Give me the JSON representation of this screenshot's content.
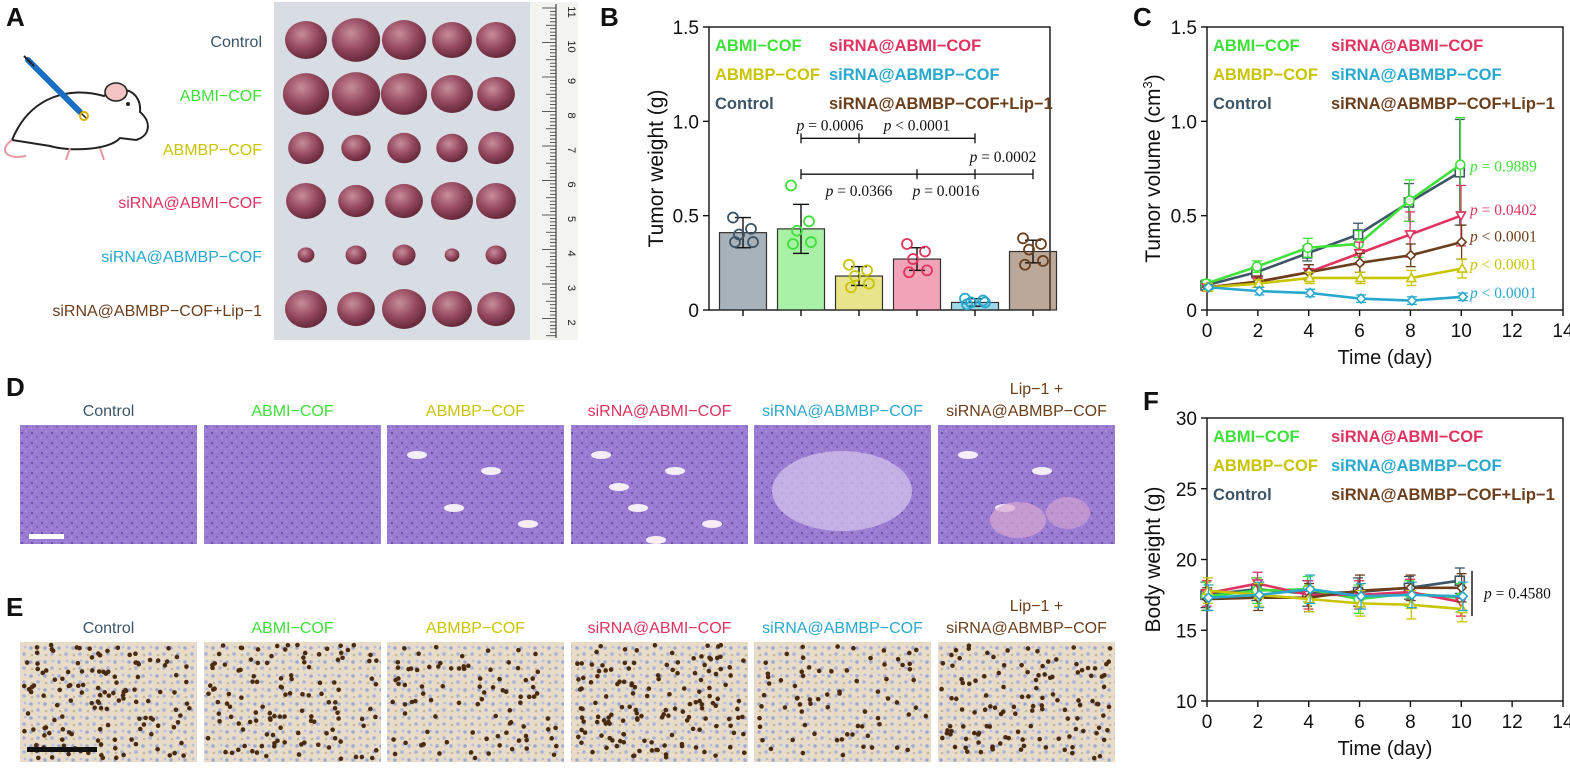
{
  "colors": {
    "Control": "#3d5566",
    "ABMI-COF": "#3fe03a",
    "ABMBP-COF": "#c9c400",
    "siRNA@ABMI-COF": "#e0335f",
    "siRNA@ABMBP-COF": "#28a8cc",
    "siRNA@ABMBP-COF+Lip-1": "#6b3e1c"
  },
  "panels": {
    "A": {
      "label": "A",
      "rows": [
        "Control",
        "ABMI−COF",
        "ABMBP−COF",
        "siRNA@ABMI−COF",
        "siRNA@ABMBP−COF",
        "siRNA@ABMBP−COF+Lip−1"
      ],
      "row_keys": [
        "Control",
        "ABMI-COF",
        "ABMBP-COF",
        "siRNA@ABMI-COF",
        "siRNA@ABMBP-COF",
        "siRNA@ABMBP-COF+Lip-1"
      ],
      "ruler_ticks": [
        "11",
        "10",
        "9",
        "8",
        "7",
        "6",
        "5",
        "4",
        "3",
        "2"
      ],
      "tumor_sizes": [
        [
          1.0,
          1.15,
          1.05,
          0.95,
          0.95
        ],
        [
          1.1,
          1.15,
          1.1,
          1.0,
          0.9
        ],
        [
          0.85,
          0.7,
          0.8,
          0.75,
          0.85
        ],
        [
          0.95,
          0.85,
          0.9,
          1.0,
          0.95
        ],
        [
          0.4,
          0.5,
          0.55,
          0.35,
          0.5
        ],
        [
          1.0,
          0.9,
          1.05,
          0.95,
          0.9
        ]
      ]
    },
    "B": {
      "label": "B"
    },
    "C": {
      "label": "C"
    },
    "D": {
      "label": "D",
      "headers": [
        "Control",
        "ABMI−COF",
        "ABMBP−COF",
        "siRNA@ABMI−COF",
        "siRNA@ABMBP−COF",
        "siRNA@ABMBP−COF"
      ],
      "header_top_last": "Lip−1 +",
      "header_keys": [
        "Control",
        "ABMI-COF",
        "ABMBP-COF",
        "siRNA@ABMI-COF",
        "siRNA@ABMBP-COF",
        "siRNA@ABMBP-COF+Lip-1"
      ]
    },
    "E": {
      "label": "E",
      "headers": [
        "Control",
        "ABMI−COF",
        "ABMBP−COF",
        "siRNA@ABMI−COF",
        "siRNA@ABMBP−COF",
        "siRNA@ABMBP−COF"
      ],
      "header_top_last": "Lip−1 +",
      "header_keys": [
        "Control",
        "ABMI-COF",
        "ABMBP-COF",
        "siRNA@ABMI-COF",
        "siRNA@ABMBP-COF",
        "siRNA@ABMBP-COF+Lip-1"
      ],
      "dot_density": [
        0.85,
        0.75,
        0.55,
        0.9,
        0.45,
        0.75
      ]
    },
    "F": {
      "label": "F"
    }
  },
  "chart_data": [
    {
      "panel": "B",
      "type": "bar",
      "ylabel": "Tumor weight (g)",
      "ylim": [
        0,
        1.5
      ],
      "yticks": [
        0,
        0.5,
        1.0,
        1.5
      ],
      "ytick_labels": [
        "0",
        "0.5",
        "1.0",
        "1.5"
      ],
      "legend": [
        {
          "label": "ABMI−COF",
          "key": "ABMI-COF"
        },
        {
          "label": "siRNA@ABMI−COF",
          "key": "siRNA@ABMI-COF"
        },
        {
          "label": "ABMBP−COF",
          "key": "ABMBP-COF"
        },
        {
          "label": "siRNA@ABMBP−COF",
          "key": "siRNA@ABMBP-COF"
        },
        {
          "label": "Control",
          "key": "Control"
        },
        {
          "label": "siRNA@ABMBP−COF+Lip−1",
          "key": "siRNA@ABMBP-COF+Lip-1"
        }
      ],
      "legend_position": "top",
      "categories": [
        "Control",
        "ABMI-COF",
        "ABMBP-COF",
        "siRNA@ABMI-COF",
        "siRNA@ABMBP-COF",
        "siRNA@ABMBP-COF+Lip-1"
      ],
      "values": [
        0.41,
        0.43,
        0.18,
        0.27,
        0.04,
        0.31
      ],
      "errors": [
        0.08,
        0.13,
        0.05,
        0.06,
        0.02,
        0.06
      ],
      "points": [
        [
          0.49,
          0.43,
          0.4,
          0.36,
          0.36
        ],
        [
          0.66,
          0.47,
          0.42,
          0.36,
          0.35
        ],
        [
          0.24,
          0.21,
          0.18,
          0.14,
          0.12
        ],
        [
          0.35,
          0.31,
          0.27,
          0.21,
          0.2
        ],
        [
          0.06,
          0.05,
          0.04,
          0.04,
          0.03
        ],
        [
          0.38,
          0.35,
          0.32,
          0.26,
          0.24
        ]
      ],
      "brackets": [
        {
          "from": 1,
          "to": 2,
          "y": 0.91,
          "label": "p = 0.0006"
        },
        {
          "from": 2,
          "to": 4,
          "y": 0.91,
          "label": "p < 0.0001"
        },
        {
          "from": 1,
          "to": 5,
          "y": 0.72,
          "label": "p = 0.0002"
        },
        {
          "from": 1,
          "to": 3,
          "y": 0.72,
          "label": "p = 0.0366"
        },
        {
          "from": 3,
          "to": 4,
          "y": 0.72,
          "label": "p = 0.0016"
        }
      ]
    },
    {
      "panel": "C",
      "type": "line",
      "xlabel": "Time (day)",
      "ylabel": "Tumor volume (cm",
      "ylabel_sup": "3",
      "ylabel_end": ")",
      "xlim": [
        0,
        14
      ],
      "ylim": [
        0,
        1.5
      ],
      "xticks": [
        0,
        2,
        4,
        6,
        8,
        10,
        12,
        14
      ],
      "xtick_labels": [
        "0",
        "2",
        "4",
        "6",
        "8",
        "10",
        "12",
        "14"
      ],
      "yticks": [
        0,
        0.5,
        1.0,
        1.5
      ],
      "ytick_labels": [
        "0",
        "0.5",
        "1.0",
        "1.5"
      ],
      "legend": [
        {
          "label": "ABMI−COF",
          "key": "ABMI-COF"
        },
        {
          "label": "siRNA@ABMI−COF",
          "key": "siRNA@ABMI-COF"
        },
        {
          "label": "ABMBP−COF",
          "key": "ABMBP-COF"
        },
        {
          "label": "siRNA@ABMBP−COF",
          "key": "siRNA@ABMBP-COF"
        },
        {
          "label": "Control",
          "key": "Control"
        },
        {
          "label": "siRNA@ABMBP−COF+Lip−1",
          "key": "siRNA@ABMBP-COF+Lip-1"
        }
      ],
      "legend_position": "top-left",
      "x": [
        0,
        2,
        4,
        6,
        8,
        10
      ],
      "series": [
        {
          "key": "Control",
          "marker": "square",
          "values": [
            0.13,
            0.2,
            0.3,
            0.4,
            0.57,
            0.73
          ],
          "errors": [
            0.02,
            0.03,
            0.04,
            0.06,
            0.1,
            0.28
          ]
        },
        {
          "key": "ABMI-COF",
          "marker": "circle",
          "values": [
            0.14,
            0.23,
            0.33,
            0.35,
            0.58,
            0.77
          ],
          "errors": [
            0.02,
            0.03,
            0.05,
            0.07,
            0.11,
            0.25
          ]
        },
        {
          "key": "siRNA@ABMI-COF",
          "marker": "triangle-down",
          "values": [
            0.12,
            0.15,
            0.2,
            0.3,
            0.4,
            0.5
          ],
          "errors": [
            0.02,
            0.03,
            0.04,
            0.06,
            0.12,
            0.16
          ]
        },
        {
          "key": "siRNA@ABMBP-COF+Lip-1",
          "marker": "diamond",
          "values": [
            0.12,
            0.15,
            0.2,
            0.25,
            0.29,
            0.36
          ],
          "errors": [
            0.02,
            0.03,
            0.04,
            0.05,
            0.06,
            0.09
          ]
        },
        {
          "key": "ABMBP-COF",
          "marker": "triangle-up",
          "values": [
            0.12,
            0.14,
            0.17,
            0.17,
            0.17,
            0.22
          ],
          "errors": [
            0.02,
            0.02,
            0.03,
            0.03,
            0.04,
            0.05
          ]
        },
        {
          "key": "siRNA@ABMBP-COF",
          "marker": "diamond",
          "values": [
            0.12,
            0.1,
            0.09,
            0.06,
            0.05,
            0.07
          ],
          "errors": [
            0.01,
            0.02,
            0.02,
            0.02,
            0.02,
            0.02
          ]
        }
      ],
      "annotations": [
        {
          "key": "ABMI-COF",
          "text": "p = 0.9889",
          "y": 0.76
        },
        {
          "key": "siRNA@ABMI-COF",
          "text": "p = 0.0402",
          "y": 0.53
        },
        {
          "key": "siRNA@ABMBP-COF+Lip-1",
          "text": "p < 0.0001",
          "y": 0.39
        },
        {
          "key": "ABMBP-COF",
          "text": "p < 0.0001",
          "y": 0.24
        },
        {
          "key": "siRNA@ABMBP-COF",
          "text": "p < 0.0001",
          "y": 0.09
        }
      ]
    },
    {
      "panel": "F",
      "type": "line",
      "xlabel": "Time (day)",
      "ylabel": "Body weight (g)",
      "xlim": [
        0,
        14
      ],
      "ylim": [
        10,
        30
      ],
      "xticks": [
        0,
        2,
        4,
        6,
        8,
        10,
        12,
        14
      ],
      "xtick_labels": [
        "0",
        "2",
        "4",
        "6",
        "8",
        "10",
        "12",
        "14"
      ],
      "yticks": [
        10,
        15,
        20,
        25,
        30
      ],
      "ytick_labels": [
        "10",
        "15",
        "20",
        "25",
        "30"
      ],
      "legend": [
        {
          "label": "ABMI−COF",
          "key": "ABMI-COF"
        },
        {
          "label": "siRNA@ABMI−COF",
          "key": "siRNA@ABMI-COF"
        },
        {
          "label": "ABMBP−COF",
          "key": "ABMBP-COF"
        },
        {
          "label": "siRNA@ABMBP−COF",
          "key": "siRNA@ABMBP-COF"
        },
        {
          "label": "Control",
          "key": "Control"
        },
        {
          "label": "siRNA@ABMBP−COF+Lip−1",
          "key": "siRNA@ABMBP-COF+Lip-1"
        }
      ],
      "legend_position": "top-left",
      "x": [
        0,
        2,
        4,
        6,
        8,
        10
      ],
      "series": [
        {
          "key": "Control",
          "marker": "square",
          "values": [
            17.5,
            17.9,
            17.6,
            17.7,
            18.0,
            18.5
          ],
          "errors": [
            0.9,
            0.8,
            0.9,
            1.0,
            0.8,
            0.9
          ]
        },
        {
          "key": "ABMI-COF",
          "marker": "circle",
          "values": [
            17.4,
            17.8,
            17.9,
            17.2,
            17.6,
            17.3
          ],
          "errors": [
            1.0,
            0.9,
            0.9,
            1.0,
            0.9,
            1.0
          ]
        },
        {
          "key": "siRNA@ABMI-COF",
          "marker": "triangle-down",
          "values": [
            17.6,
            18.3,
            17.5,
            17.5,
            17.7,
            17.0
          ],
          "errors": [
            0.9,
            0.8,
            1.0,
            1.0,
            0.9,
            1.0
          ]
        },
        {
          "key": "siRNA@ABMBP-COF+Lip-1",
          "marker": "diamond",
          "values": [
            17.2,
            17.3,
            17.3,
            17.8,
            18.0,
            18.0
          ],
          "errors": [
            0.8,
            0.9,
            1.0,
            1.1,
            0.9,
            1.0
          ]
        },
        {
          "key": "ABMBP-COF",
          "marker": "triangle-up",
          "values": [
            17.8,
            17.5,
            17.2,
            16.9,
            16.8,
            16.5
          ],
          "errors": [
            0.9,
            0.8,
            0.9,
            0.9,
            1.0,
            0.9
          ]
        },
        {
          "key": "siRNA@ABMBP-COF",
          "marker": "diamond",
          "values": [
            17.3,
            17.5,
            17.9,
            17.4,
            17.5,
            17.4
          ],
          "errors": [
            0.9,
            0.9,
            1.0,
            0.9,
            0.9,
            1.0
          ]
        }
      ],
      "annotations": [
        {
          "text": "p = 0.4580",
          "y": 17.6
        }
      ]
    }
  ]
}
